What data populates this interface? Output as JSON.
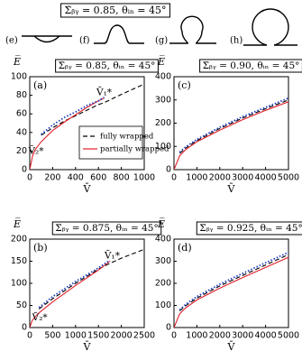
{
  "header": {
    "title": "Σ̄ᵦᵧ = 0.85, θᵢₙ = 45°",
    "shape_labels": [
      "(e)",
      "(f)",
      "(g)",
      "(h)"
    ]
  },
  "chart_data": [
    {
      "type": "line",
      "label": "(a)",
      "title": "Σ̄ᵦᵧ = 0.85, θᵢₙ = 45°",
      "x_label": "V̄",
      "y_label": "E̅",
      "x": [
        0,
        25,
        50,
        100,
        200,
        300,
        400,
        500,
        600,
        650,
        800,
        1000
      ],
      "series": [
        {
          "name": "fully wrapped",
          "color": "#000000",
          "style": "dashed",
          "values": [
            null,
            null,
            null,
            37,
            45,
            52,
            58,
            64,
            70,
            72,
            81,
            92
          ]
        },
        {
          "name": "partially wrapped",
          "color": "#e0202a",
          "style": "solid",
          "values": [
            0,
            15,
            22,
            30,
            42,
            51,
            59,
            67,
            74,
            77,
            null,
            null
          ]
        },
        {
          "color": "#1f3fbf",
          "style": "dotted",
          "values": [
            null,
            null,
            null,
            38,
            48,
            56,
            62,
            69,
            74,
            78,
            null,
            null
          ]
        }
      ],
      "annotations": [
        "V̄₁*",
        "V̄₂*"
      ],
      "legend": "lower right",
      "xlim": [
        0,
        1000
      ],
      "xticks": [
        0,
        200,
        400,
        600,
        800,
        1000
      ],
      "ylim": [
        0,
        100
      ],
      "yticks": [
        0,
        20,
        40,
        60,
        80,
        100
      ]
    },
    {
      "type": "line",
      "label": "(c)",
      "title": "Σ̄ᵦᵧ = 0.90, θᵢₙ = 45°",
      "x_label": "V̄",
      "y_label": "E̅",
      "x": [
        0,
        250,
        500,
        1000,
        2000,
        3000,
        4000,
        5000
      ],
      "series": [
        {
          "name": "fully wrapped",
          "color": "#000000",
          "style": "dashed",
          "values": [
            null,
            70,
            92,
            125,
            177,
            222,
            262,
            300
          ]
        },
        {
          "name": "partially wrapped",
          "color": "#e0202a",
          "style": "solid",
          "values": [
            0,
            60,
            85,
            120,
            170,
            215,
            255,
            292
          ]
        },
        {
          "color": "#1f3fbf",
          "style": "dotted",
          "values": [
            null,
            75,
            97,
            130,
            182,
            228,
            268,
            308
          ]
        }
      ],
      "xlim": [
        0,
        5000
      ],
      "xticks": [
        0,
        1000,
        2000,
        3000,
        4000,
        5000
      ],
      "ylim": [
        0,
        400
      ],
      "yticks": [
        0,
        100,
        200,
        300,
        400
      ]
    },
    {
      "type": "line",
      "label": "(b)",
      "title": "Σ̄ᵦᵧ = 0.875, θᵢₙ = 45°",
      "x_label": "V̄",
      "y_label": "E̅",
      "x": [
        0,
        50,
        100,
        200,
        500,
        1000,
        1500,
        1750,
        2000,
        2500
      ],
      "series": [
        {
          "name": "fully wrapped",
          "color": "#000000",
          "style": "dashed",
          "values": [
            null,
            null,
            null,
            42,
            65,
            100,
            132,
            145,
            157,
            177
          ]
        },
        {
          "name": "partially wrapped",
          "color": "#e0202a",
          "style": "solid",
          "values": [
            0,
            15,
            22,
            33,
            58,
            95,
            130,
            150,
            null,
            null
          ]
        },
        {
          "color": "#1f3fbf",
          "style": "dotted",
          "values": [
            null,
            null,
            null,
            45,
            70,
            104,
            135,
            152,
            null,
            null
          ]
        }
      ],
      "annotations": [
        "V̄₁*",
        "V̄₂*"
      ],
      "xlim": [
        0,
        2500
      ],
      "xticks": [
        0,
        500,
        1000,
        1500,
        2000,
        2500
      ],
      "ylim": [
        0,
        200
      ],
      "yticks": [
        0,
        50,
        100,
        150,
        200
      ]
    },
    {
      "type": "line",
      "label": "(d)",
      "title": "Σ̄ᵦᵧ = 0.925, θᵢₙ = 45°",
      "x_label": "V̄",
      "y_label": "E̅",
      "x": [
        0,
        250,
        500,
        1000,
        2000,
        3000,
        4000,
        5000
      ],
      "series": [
        {
          "name": "fully wrapped",
          "color": "#000000",
          "style": "dashed",
          "values": [
            null,
            75,
            98,
            133,
            188,
            236,
            283,
            330
          ]
        },
        {
          "name": "partially wrapped",
          "color": "#e0202a",
          "style": "solid",
          "values": [
            0,
            62,
            88,
            125,
            178,
            226,
            272,
            318
          ]
        },
        {
          "color": "#1f3fbf",
          "style": "dotted",
          "values": [
            null,
            80,
            104,
            140,
            196,
            245,
            293,
            340
          ]
        }
      ],
      "xlim": [
        0,
        5000
      ],
      "xticks": [
        0,
        1000,
        2000,
        3000,
        4000,
        5000
      ],
      "ylim": [
        0,
        400
      ],
      "yticks": [
        0,
        100,
        200,
        300,
        400
      ]
    }
  ]
}
